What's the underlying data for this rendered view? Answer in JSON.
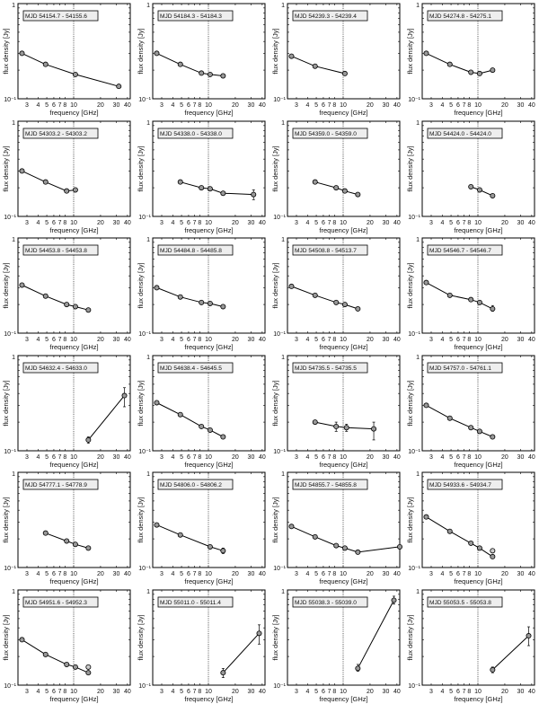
{
  "chart_data": {
    "type": "line",
    "xlabel": "frequency [GHz]",
    "ylabel": "flux density [Jy]",
    "xscale": "log",
    "yscale": "log",
    "xlim": [
      2.38,
      43
    ],
    "ylim": [
      0.1,
      1
    ],
    "xticks": [
      "3",
      "4",
      "5",
      "6",
      "7",
      "8",
      "10",
      "20",
      "30",
      "40"
    ],
    "xtick_values": [
      3,
      4,
      5,
      6,
      7,
      8,
      10,
      20,
      30,
      40
    ],
    "yticks": [
      "10⁻¹",
      "1"
    ],
    "reference_line_x": 10,
    "panels": [
      {
        "label": "MJD 54154.7 - 54155.6",
        "x": [
          2.64,
          4.85,
          10.45,
          32
        ],
        "y": [
          0.3,
          0.23,
          0.18,
          0.135
        ]
      },
      {
        "label": "MJD 54184.3 - 54184.3",
        "x": [
          2.64,
          4.85,
          8.35,
          10.45,
          14.6
        ],
        "y": [
          0.3,
          0.23,
          0.186,
          0.18,
          0.174
        ]
      },
      {
        "label": "MJD 54239.3 - 54239.4",
        "x": [
          2.64,
          4.85,
          10.45
        ],
        "y": [
          0.28,
          0.22,
          0.184
        ]
      },
      {
        "label": "MJD 54274.8 - 54275.1",
        "x": [
          2.64,
          4.85,
          8.35,
          10.45,
          14.6
        ],
        "y": [
          0.3,
          0.23,
          0.19,
          0.184,
          0.2
        ]
      },
      {
        "label": "MJD 54303.2 - 54303.2",
        "x": [
          2.64,
          4.85,
          8.35,
          10.45
        ],
        "y": [
          0.3,
          0.23,
          0.185,
          0.19
        ]
      },
      {
        "label": "MJD 54338.0 - 54338.0",
        "x": [
          4.85,
          8.35,
          10.45,
          14.6,
          32
        ],
        "y": [
          0.23,
          0.2,
          0.195,
          0.175,
          0.17
        ],
        "err": [
          null,
          null,
          null,
          null,
          [
            0.15,
            0.19
          ]
        ]
      },
      {
        "label": "MJD 54359.0 - 54359.0",
        "x": [
          4.85,
          8.35,
          10.45,
          14.6
        ],
        "y": [
          0.23,
          0.2,
          0.185,
          0.17
        ]
      },
      {
        "label": "MJD 54424.0 - 54424.0",
        "x": [
          8.35,
          10.45,
          14.6
        ],
        "y": [
          0.205,
          0.19,
          0.165
        ]
      },
      {
        "label": "MJD 54453.8 - 54453.8",
        "x": [
          2.64,
          4.85,
          8.35,
          10.45,
          14.6
        ],
        "y": [
          0.32,
          0.245,
          0.2,
          0.19,
          0.175
        ]
      },
      {
        "label": "MJD 54484.8 - 54485.8",
        "x": [
          2.64,
          4.85,
          8.35,
          10.45,
          14.6
        ],
        "y": [
          0.3,
          0.24,
          0.21,
          0.205,
          0.19
        ]
      },
      {
        "label": "MJD 54508.8 - 54513.7",
        "x": [
          2.64,
          4.85,
          8.35,
          10.45,
          14.6
        ],
        "y": [
          0.31,
          0.25,
          0.21,
          0.2,
          0.18
        ]
      },
      {
        "label": "MJD 54546.7 - 54546.7",
        "x": [
          2.64,
          4.85,
          8.35,
          10.45,
          14.6
        ],
        "y": [
          0.34,
          0.25,
          0.225,
          0.21,
          0.18
        ],
        "err": [
          null,
          null,
          null,
          null,
          [
            0.17,
            0.195
          ]
        ]
      },
      {
        "label": "MJD 54632.4 - 54633.0",
        "x": [
          14.6,
          37
        ],
        "y": [
          0.13,
          0.38
        ],
        "err": [
          [
            0.12,
            0.14
          ],
          [
            0.29,
            0.46
          ]
        ]
      },
      {
        "label": "MJD 54638.4 - 54645.5",
        "x": [
          2.64,
          4.85,
          8.35,
          10.45,
          14.6
        ],
        "y": [
          0.32,
          0.24,
          0.18,
          0.165,
          0.14
        ]
      },
      {
        "label": "MJD 54735.5 - 54735.5",
        "x": [
          4.85,
          8.35,
          10.9,
          22
        ],
        "y": [
          0.2,
          0.18,
          0.175,
          0.17
        ],
        "err": [
          null,
          [
            0.16,
            0.2
          ],
          [
            0.16,
            0.19
          ],
          [
            0.13,
            0.2
          ]
        ]
      },
      {
        "label": "MJD 54757.0 - 54761.1",
        "x": [
          2.64,
          4.85,
          8.35,
          10.45,
          14.6
        ],
        "y": [
          0.3,
          0.22,
          0.175,
          0.16,
          0.14
        ]
      },
      {
        "label": "MJD 54777.1 - 54778.9",
        "x": [
          4.85,
          8.35,
          10.45,
          14.6
        ],
        "y": [
          0.23,
          0.19,
          0.175,
          0.16
        ]
      },
      {
        "label": "MJD 54806.0 - 54806.2",
        "x": [
          2.64,
          4.85,
          10.45,
          14.6
        ],
        "y": [
          0.28,
          0.22,
          0.165,
          0.15
        ],
        "err": [
          null,
          null,
          null,
          [
            0.14,
            0.16
          ]
        ]
      },
      {
        "label": "MJD 54855.7 - 54855.8",
        "x": [
          2.64,
          4.85,
          8.35,
          10.45,
          14.6,
          43
        ],
        "y": [
          0.27,
          0.21,
          0.17,
          0.16,
          0.145,
          0.165
        ]
      },
      {
        "label": "MJD 54933.6 - 54934.7",
        "x": [
          2.64,
          4.85,
          8.35,
          10.45,
          14.6
        ],
        "y": [
          0.34,
          0.24,
          0.18,
          0.16,
          0.13
        ],
        "extra": {
          "x": 14.6,
          "y": 0.15
        }
      },
      {
        "label": "MJD 54951.6 - 54952.3",
        "x": [
          2.64,
          4.85,
          8.35,
          10.45,
          14.6
        ],
        "y": [
          0.3,
          0.21,
          0.165,
          0.155,
          0.135
        ],
        "extra": {
          "x": 14.6,
          "y": 0.155
        }
      },
      {
        "label": "MJD 55011.0 - 55011.4",
        "x": [
          14.6,
          37
        ],
        "y": [
          0.135,
          0.35
        ],
        "err": [
          [
            0.12,
            0.15
          ],
          [
            0.27,
            0.43
          ]
        ]
      },
      {
        "label": "MJD 55038.3 - 55039.0",
        "x": [
          14.6,
          37
        ],
        "y": [
          0.15,
          0.78
        ],
        "err": [
          [
            0.14,
            0.165
          ],
          [
            0.71,
            0.86
          ]
        ]
      },
      {
        "label": "MJD 55053.5 - 55053.8",
        "x": [
          14.6,
          37
        ],
        "y": [
          0.145,
          0.33
        ],
        "err": [
          [
            0.135,
            0.155
          ],
          [
            0.26,
            0.41
          ]
        ]
      }
    ]
  }
}
